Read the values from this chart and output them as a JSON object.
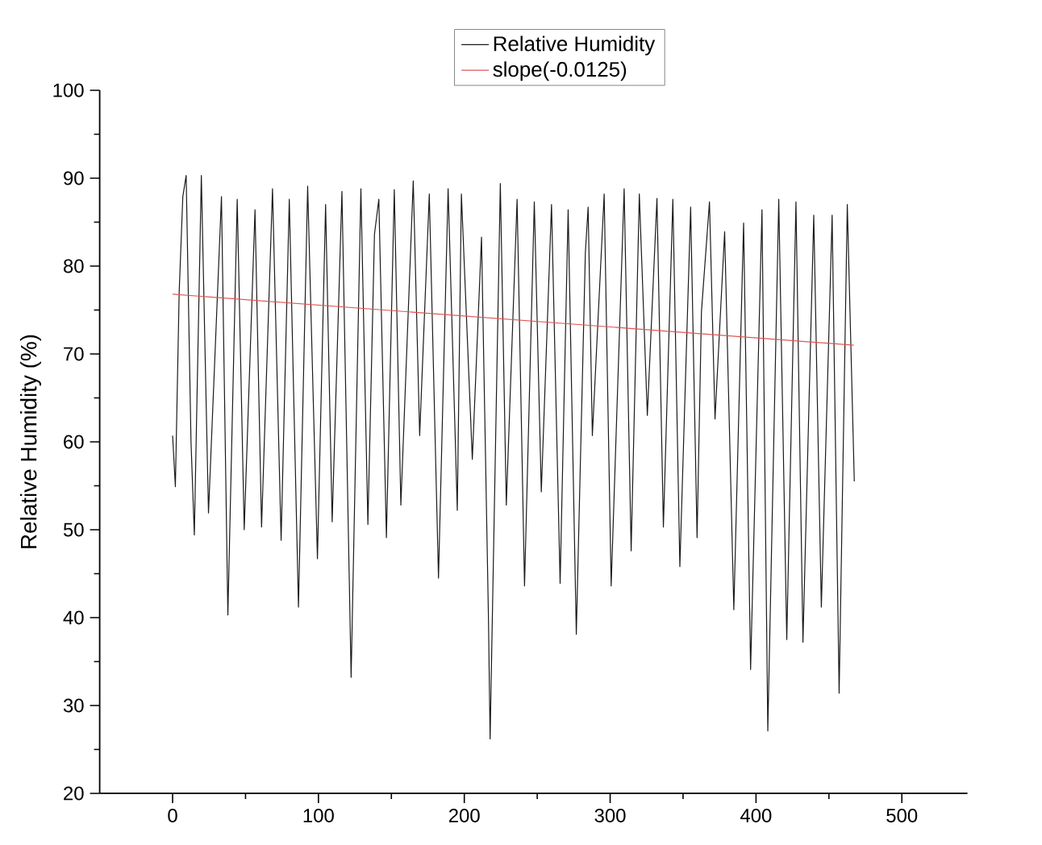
{
  "chart_data": {
    "type": "line",
    "ylabel": "Relative Humidity (%)",
    "xlim": [
      -50,
      545
    ],
    "ylim": [
      20,
      100
    ],
    "xticks": [
      0,
      100,
      200,
      300,
      400,
      500
    ],
    "yticks": [
      20,
      30,
      40,
      50,
      60,
      70,
      80,
      90,
      100
    ],
    "legend": "top",
    "series": [
      {
        "name": "Relative Humidity",
        "color": "#1a1a1a",
        "x": [
          0,
          1.9,
          4.5,
          7,
          9.3,
          12.6,
          14.9,
          19.7,
          24.6,
          33.5,
          37.9,
          44.3,
          49.1,
          56.5,
          61,
          68.5,
          74.4,
          80,
          86.3,
          92.6,
          99.3,
          104.9,
          109.4,
          116.1,
          122.4,
          129.1,
          133.9,
          138.4,
          141.4,
          146.6,
          152,
          156.5,
          165,
          169.4,
          176,
          182.3,
          188.9,
          195.2,
          198,
          205.5,
          211.8,
          216.5,
          217.7,
          224.7,
          228.8,
          236.2,
          241.3,
          248,
          252.8,
          259.8,
          265.7,
          271.2,
          276.8,
          283,
          284.9,
          287.8,
          295.9,
          300.7,
          309.6,
          314.4,
          320,
          325.5,
          332.1,
          336.5,
          343,
          347.8,
          355.2,
          359.6,
          362.6,
          368.1,
          371.9,
          378.5,
          384.8,
          391.5,
          396.3,
          404.1,
          408.1,
          415.6,
          421.1,
          427.4,
          432.2,
          439.6,
          444.8,
          452.2,
          457,
          462.6,
          467.4
        ],
        "values": [
          60.7,
          54.9,
          77,
          87.9,
          90.3,
          60.1,
          49.4,
          90.3,
          51.9,
          87.9,
          40.3,
          87.6,
          50.0,
          86.4,
          50.3,
          88.8,
          48.8,
          87.6,
          41.2,
          89.1,
          46.7,
          87.0,
          50.9,
          88.5,
          33.2,
          88.8,
          50.6,
          83.6,
          87.6,
          49.1,
          88.7,
          52.8,
          89.7,
          60.7,
          88.2,
          44.5,
          88.8,
          52.2,
          88.2,
          58,
          83.3,
          40.6,
          26.2,
          89.4,
          52.8,
          87.6,
          43.6,
          87.3,
          54.3,
          87,
          43.9,
          86.4,
          38.1,
          81.5,
          86.7,
          60.7,
          88.2,
          43.6,
          88.8,
          47.6,
          88.2,
          63,
          87.7,
          50.3,
          87.6,
          45.8,
          86.7,
          49.1,
          74.8,
          87.3,
          62.6,
          83.9,
          40.9,
          84.9,
          34.1,
          86.4,
          27.1,
          87.6,
          37.5,
          87.3,
          37.2,
          85.8,
          41.2,
          85.8,
          31.4,
          87.0,
          55.5
        ]
      },
      {
        "name": "slope(-0.0125)",
        "color": "#e05555",
        "x": [
          0,
          467
        ],
        "values": [
          76.8,
          71.0
        ]
      }
    ]
  }
}
